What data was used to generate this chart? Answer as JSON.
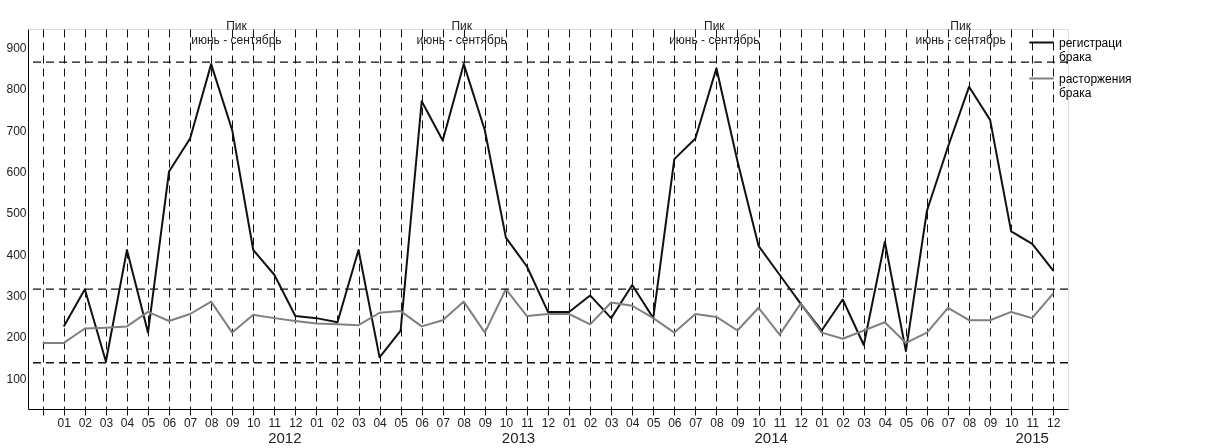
{
  "chart_data": {
    "type": "line",
    "categories": [
      null,
      "01",
      "02",
      "03",
      "04",
      "05",
      "06",
      "07",
      "08",
      "09",
      "10",
      "11",
      "12",
      "01",
      "02",
      "03",
      "04",
      "05",
      "06",
      "07",
      "08",
      "09",
      "10",
      "11",
      "12",
      "01",
      "02",
      "03",
      "04",
      "05",
      "06",
      "07",
      "08",
      "09",
      "10",
      "11",
      "12",
      "01",
      "02",
      "03",
      "04",
      "05",
      "06",
      "07",
      "08",
      "09",
      "10",
      "11",
      "12"
    ],
    "series": [
      {
        "name": "регистраци\nбрака",
        "color": "#111111",
        "values": [
          null,
          225,
          315,
          140,
          410,
          210,
          600,
          680,
          860,
          700,
          410,
          350,
          250,
          245,
          235,
          410,
          150,
          215,
          770,
          675,
          860,
          700,
          440,
          370,
          260,
          260,
          300,
          245,
          325,
          245,
          630,
          680,
          850,
          625,
          420,
          350,
          280,
          215,
          290,
          180,
          430,
          165,
          505,
          660,
          805,
          725,
          455,
          425,
          360
        ]
      },
      {
        "name": "расторжения\nбрака",
        "color": "#808080",
        "values": [
          185,
          185,
          220,
          222,
          225,
          260,
          238,
          255,
          285,
          210,
          253,
          245,
          238,
          232,
          230,
          228,
          258,
          262,
          225,
          240,
          285,
          210,
          315,
          250,
          255,
          255,
          230,
          283,
          275,
          245,
          210,
          255,
          248,
          215,
          270,
          205,
          280,
          210,
          195,
          215,
          235,
          185,
          210,
          270,
          240,
          240,
          260,
          245,
          305
        ]
      }
    ],
    "ylim": [
      25,
      945
    ],
    "yticks": [
      100,
      200,
      300,
      400,
      500,
      600,
      700,
      800,
      900
    ],
    "ref_lines": [
      {
        "axis": "y",
        "value": 865,
        "color": "#111111",
        "line_style": "dashed"
      },
      {
        "axis": "y",
        "value": 315,
        "color": "#111111",
        "line_style": "dashed"
      },
      {
        "axis": "y",
        "value": 137,
        "color": "#111111",
        "line_style": "dashed"
      }
    ],
    "annotations": [
      "Пик\nиюнь - сентябрь",
      "Пик\nиюнь - сентябрь",
      "Пик\nиюнь - сентябрь",
      "Пик\nиюнь - сентябрь",
      "2012",
      "2013",
      "2014",
      "2015"
    ],
    "grid": "x",
    "legend": "right",
    "marker": "none",
    "line_style": "solid"
  }
}
